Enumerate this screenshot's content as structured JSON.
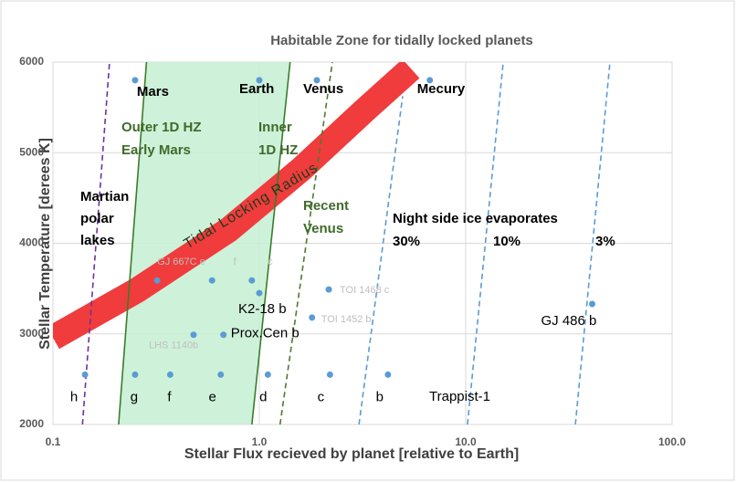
{
  "chart_data": {
    "type": "scatter",
    "title": "Habitable Zone for tidally locked planets",
    "x_label": "Stellar Flux recieved by planet [relative to Earth]",
    "y_label": "Stellar Temperature [derees K]",
    "xscale": "log",
    "xlim": [
      0.1,
      100
    ],
    "ylim": [
      2000,
      6000
    ],
    "xticks": [
      {
        "value": 0.1,
        "label": "0.1"
      },
      {
        "value": 1,
        "label": "1.0"
      },
      {
        "value": 10,
        "label": "10.0"
      },
      {
        "value": 100,
        "label": "100.0"
      }
    ],
    "yticks": [
      2000,
      3000,
      4000,
      5000,
      6000
    ],
    "grid": true,
    "points": {
      "color": "#5b9bd5",
      "x": [
        0.25,
        1.0,
        1.9,
        6.7,
        0.143,
        0.25,
        0.37,
        0.65,
        1.1,
        2.2,
        4.2,
        0.32,
        0.59,
        0.92,
        1.0,
        2.17,
        1.8,
        0.67,
        0.48,
        41
      ],
      "values": [
        5800,
        5800,
        5800,
        5800,
        2550,
        2550,
        2550,
        2550,
        2550,
        2550,
        2550,
        3590,
        3590,
        3590,
        3450,
        3490,
        3180,
        2990,
        2990,
        3330
      ],
      "labels": [
        "Mars",
        "Earth",
        "Venus",
        "Mecury",
        "h",
        "g",
        "f",
        "e",
        "d",
        "c",
        "b",
        "GJ 667C e",
        "f",
        "c",
        "K2-18 b",
        "TOI 1468 c",
        "TOI 1452 b",
        "Prox.Cen b",
        "LHS 1140b",
        "GJ 486 b"
      ],
      "label_colors": [
        "#000000",
        "#000000",
        "#000000",
        "#000000",
        "#000000",
        "#000000",
        "#000000",
        "#000000",
        "#000000",
        "#000000",
        "#000000",
        "#bfbfbf",
        "#bfbfbf",
        "#bfbfbf",
        "#000000",
        "#bfbfbf",
        "#bfbfbf",
        "#000000",
        "#bfbfbf",
        "#000000"
      ]
    },
    "lines": [
      {
        "x": [
          0.139,
          0.188
        ],
        "values": [
          2000,
          6000
        ],
        "color": "#7030a0",
        "dash": true
      },
      {
        "x": [
          0.208,
          0.284
        ],
        "values": [
          2000,
          6000
        ],
        "color": "#3a7d2a",
        "dash": false,
        "fill_to_next": "#c6efd4"
      },
      {
        "x": [
          0.92,
          1.41
        ],
        "values": [
          2000,
          6000
        ],
        "color": "#3a7d2a",
        "dash": false
      },
      {
        "x": [
          1.26,
          2.26
        ],
        "values": [
          2000,
          6000
        ],
        "color": "#4e7a2e",
        "dash": true
      },
      {
        "x": [
          3.04,
          4.95
        ],
        "values": [
          2000,
          5625
        ],
        "color": "#5b9bd5",
        "dash": true
      },
      {
        "x": [
          10.2,
          15.2
        ],
        "values": [
          2000,
          6000
        ],
        "color": "#5b9bd5",
        "dash": true
      },
      {
        "x": [
          34,
          50
        ],
        "values": [
          2000,
          6000
        ],
        "color": "#5b9bd5",
        "dash": true
      }
    ],
    "tidal_band": {
      "x": [
        0.1,
        0.255,
        0.707,
        1.6,
        3.26,
        5.43
      ],
      "values": [
        2957,
        3480,
        4145,
        4820,
        5474,
        5927
      ],
      "color": "#f03c3c"
    },
    "annotations": [
      "Outer 1D HZ",
      "Early Mars",
      "Inner",
      "1D HZ",
      "Recent",
      "Venus",
      "Martian",
      "polar",
      "lakes",
      "Tidal Locking Radius",
      "Night side ice evaporates",
      "30%",
      "10%",
      "3%",
      "Trappist-1"
    ]
  }
}
